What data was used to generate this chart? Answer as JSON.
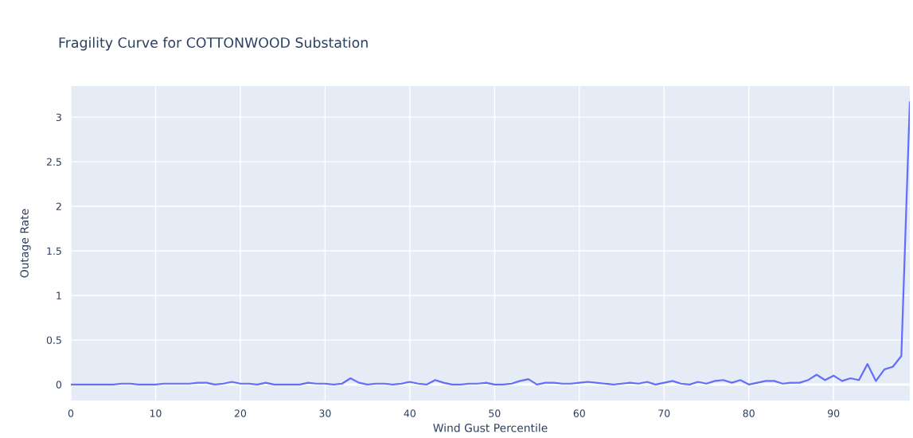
{
  "chart_data": {
    "type": "line",
    "title": "Fragility Curve for COTTONWOOD Substation",
    "xlabel": "Wind Gust Percentile",
    "ylabel": "Outage Rate",
    "x": [
      0,
      1,
      2,
      3,
      4,
      5,
      6,
      7,
      8,
      9,
      10,
      11,
      12,
      13,
      14,
      15,
      16,
      17,
      18,
      19,
      20,
      21,
      22,
      23,
      24,
      25,
      26,
      27,
      28,
      29,
      30,
      31,
      32,
      33,
      34,
      35,
      36,
      37,
      38,
      39,
      40,
      41,
      42,
      43,
      44,
      45,
      46,
      47,
      48,
      49,
      50,
      51,
      52,
      53,
      54,
      55,
      56,
      57,
      58,
      59,
      60,
      61,
      62,
      63,
      64,
      65,
      66,
      67,
      68,
      69,
      70,
      71,
      72,
      73,
      74,
      75,
      76,
      77,
      78,
      79,
      80,
      81,
      82,
      83,
      84,
      85,
      86,
      87,
      88,
      89,
      90,
      91,
      92,
      93,
      94,
      95,
      96,
      97,
      98,
      99
    ],
    "series": [
      {
        "color": "#636efa",
        "values": [
          0,
          0,
          0,
          0,
          0,
          0,
          0.01,
          0.01,
          0,
          0,
          0,
          0.01,
          0.01,
          0.01,
          0.01,
          0.02,
          0.02,
          0,
          0.01,
          0.03,
          0.01,
          0.01,
          0,
          0.02,
          0,
          0,
          0,
          0,
          0.02,
          0.01,
          0.01,
          0,
          0.01,
          0.07,
          0.02,
          0,
          0.01,
          0.01,
          0,
          0.01,
          0.03,
          0.01,
          0,
          0.05,
          0.02,
          0,
          0,
          0.01,
          0.01,
          0.02,
          0,
          0,
          0.01,
          0.04,
          0.06,
          0,
          0.02,
          0.02,
          0.01,
          0.01,
          0.02,
          0.03,
          0.02,
          0.01,
          0,
          0.01,
          0.02,
          0.01,
          0.03,
          0,
          0.02,
          0.04,
          0.01,
          0,
          0.03,
          0.01,
          0.04,
          0.05,
          0.02,
          0.05,
          0,
          0.02,
          0.04,
          0.04,
          0.01,
          0.02,
          0.02,
          0.05,
          0.11,
          0.05,
          0.1,
          0.04,
          0.07,
          0.05,
          0.23,
          0.04,
          0.17,
          0.2,
          0.32,
          3.17
        ]
      }
    ],
    "xlim": [
      0,
      99
    ],
    "ylim": [
      -0.18,
      3.35
    ],
    "xticks": [
      0,
      10,
      20,
      30,
      40,
      50,
      60,
      70,
      80,
      90
    ],
    "yticks": [
      0,
      0.5,
      1,
      1.5,
      2,
      2.5,
      3
    ],
    "grid": true
  }
}
